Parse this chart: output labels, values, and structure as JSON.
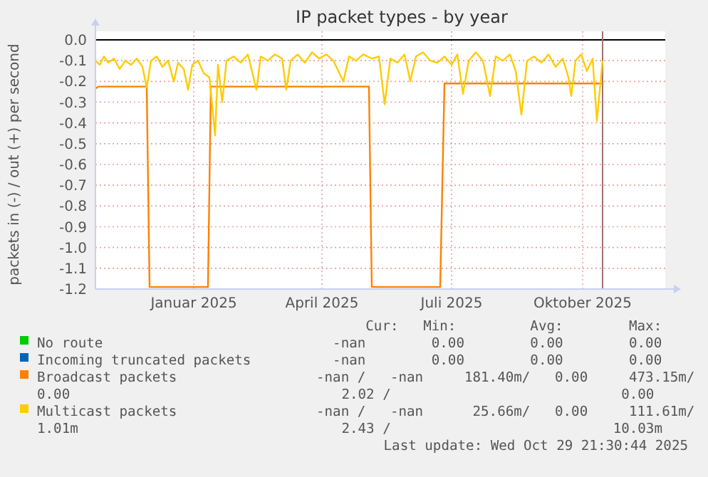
{
  "chart_data": {
    "type": "line",
    "title": "IP packet types - by year",
    "ylabel": "packets in (-) / out (+) per second",
    "xlim": [
      "2024-11-07",
      "2025-12-12"
    ],
    "xticks": [
      {
        "value": "2025-01-15",
        "label": "Januar 2025"
      },
      {
        "value": "2025-04-15",
        "label": "April 2025"
      },
      {
        "value": "2025-07-15",
        "label": "Juli 2025"
      },
      {
        "value": "2025-10-15",
        "label": "Oktober 2025"
      }
    ],
    "ylim": [
      -1.2,
      0
    ],
    "yticks": [
      {
        "value": 0,
        "label": "0.0"
      },
      {
        "value": -0.1,
        "label": "-0.1"
      },
      {
        "value": -0.2,
        "label": "-0.2"
      },
      {
        "value": -0.3,
        "label": "-0.3"
      },
      {
        "value": -0.4,
        "label": "-0.4"
      },
      {
        "value": -0.5,
        "label": "-0.5"
      },
      {
        "value": -0.6,
        "label": "-0.6"
      },
      {
        "value": -0.7,
        "label": "-0.7"
      },
      {
        "value": -0.8,
        "label": "-0.8"
      },
      {
        "value": -0.9,
        "label": "-0.9"
      },
      {
        "value": -1,
        "label": "-1.0"
      },
      {
        "value": -1.1,
        "label": "-1.1"
      },
      {
        "value": -1.2,
        "label": "-1.2"
      }
    ],
    "grid": true,
    "legend": "bottom",
    "marker": "none",
    "line_style": "solid",
    "ref_lines": [
      {
        "axis": "y",
        "value": 0,
        "color": "#000000"
      },
      {
        "axis": "x",
        "value": "2025-10-29",
        "color": "#a07070"
      }
    ],
    "series": [
      {
        "name": "No route",
        "color": "#00cc00"
      },
      {
        "name": "Incoming truncated packets",
        "color": "#0066b3"
      },
      {
        "name": "Broadcast packets",
        "color": "#ff8000",
        "x": [
          "2024-11-07",
          "2024-11-09",
          "2024-12-13",
          "2024-12-15",
          "2025-01-25",
          "2025-01-27",
          "2025-05-18",
          "2025-05-20",
          "2025-07-07",
          "2025-07-10",
          "2025-10-29"
        ],
        "values": [
          -0.235,
          -0.225,
          -0.225,
          -1.19,
          -1.19,
          -0.225,
          -0.225,
          -1.19,
          -1.19,
          -0.21,
          -0.21
        ]
      },
      {
        "name": "Multicast packets",
        "color": "#ffcc00",
        "x": [
          "2024-11-07",
          "2024-11-10",
          "2024-11-13",
          "2024-11-16",
          "2024-11-20",
          "2024-11-24",
          "2024-11-28",
          "2024-12-02",
          "2024-12-06",
          "2024-12-10",
          "2024-12-13",
          "2024-12-16",
          "2024-12-20",
          "2024-12-24",
          "2024-12-28",
          "2025-01-01",
          "2025-01-04",
          "2025-01-08",
          "2025-01-11",
          "2025-01-14",
          "2025-01-18",
          "2025-01-22",
          "2025-01-26",
          "2025-01-30",
          "2025-02-01",
          "2025-02-04",
          "2025-02-07",
          "2025-02-12",
          "2025-02-17",
          "2025-02-22",
          "2025-02-28",
          "2025-03-03",
          "2025-03-08",
          "2025-03-13",
          "2025-03-18",
          "2025-03-21",
          "2025-03-24",
          "2025-03-29",
          "2025-04-03",
          "2025-04-08",
          "2025-04-13",
          "2025-04-18",
          "2025-04-23",
          "2025-04-30",
          "2025-05-04",
          "2025-05-09",
          "2025-05-14",
          "2025-05-20",
          "2025-05-25",
          "2025-05-29",
          "2025-06-02",
          "2025-06-07",
          "2025-06-12",
          "2025-06-16",
          "2025-06-20",
          "2025-06-25",
          "2025-06-30",
          "2025-07-05",
          "2025-07-10",
          "2025-07-15",
          "2025-07-19",
          "2025-07-23",
          "2025-07-27",
          "2025-08-01",
          "2025-08-06",
          "2025-08-11",
          "2025-08-15",
          "2025-08-20",
          "2025-08-25",
          "2025-08-29",
          "2025-09-02",
          "2025-09-06",
          "2025-09-11",
          "2025-09-16",
          "2025-09-21",
          "2025-09-26",
          "2025-10-01",
          "2025-10-05",
          "2025-10-07",
          "2025-10-10",
          "2025-10-14",
          "2025-10-18",
          "2025-10-22",
          "2025-10-25",
          "2025-10-29"
        ],
        "values": [
          -0.1,
          -0.12,
          -0.08,
          -0.11,
          -0.09,
          -0.14,
          -0.1,
          -0.12,
          -0.09,
          -0.13,
          -0.23,
          -0.1,
          -0.08,
          -0.13,
          -0.1,
          -0.2,
          -0.11,
          -0.14,
          -0.24,
          -0.12,
          -0.1,
          -0.16,
          -0.18,
          -0.46,
          -0.12,
          -0.3,
          -0.1,
          -0.08,
          -0.11,
          -0.07,
          -0.24,
          -0.08,
          -0.1,
          -0.07,
          -0.09,
          -0.24,
          -0.1,
          -0.07,
          -0.11,
          -0.06,
          -0.09,
          -0.07,
          -0.1,
          -0.2,
          -0.08,
          -0.1,
          -0.07,
          -0.09,
          -0.08,
          -0.31,
          -0.09,
          -0.11,
          -0.07,
          -0.2,
          -0.08,
          -0.06,
          -0.1,
          -0.11,
          -0.08,
          -0.12,
          -0.07,
          -0.26,
          -0.1,
          -0.06,
          -0.1,
          -0.27,
          -0.08,
          -0.1,
          -0.07,
          -0.15,
          -0.36,
          -0.1,
          -0.08,
          -0.11,
          -0.07,
          -0.13,
          -0.09,
          -0.18,
          -0.27,
          -0.1,
          -0.07,
          -0.15,
          -0.09,
          -0.39,
          -0.1
        ]
      }
    ],
    "annotations": [
      "      Cur:   Min:         Avg:        Max:",
      "  -nan        0.00        0.00        0.00",
      "  -nan        0.00        0.00        0.00",
      "-nan /   -nan     181.40m/   0.00     473.15m/\n0.00                                 2.02 /                            0.00",
      "-nan /   -nan      25.66m/   0.00     111.61m/\n1.01m                                2.43 /                           10.03m",
      "Last update: Wed Oct 29 21:30:44 2025"
    ]
  }
}
